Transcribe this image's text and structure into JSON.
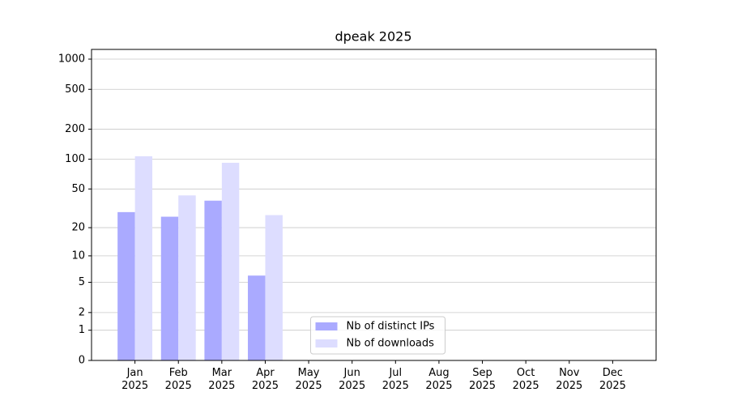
{
  "chart_data": {
    "type": "bar",
    "title": "dpeak 2025",
    "scale": "log1p",
    "categories": [
      "Jan\n2025",
      "Feb\n2025",
      "Mar\n2025",
      "Apr\n2025",
      "May\n2025",
      "Jun\n2025",
      "Jul\n2025",
      "Aug\n2025",
      "Sep\n2025",
      "Oct\n2025",
      "Nov\n2025",
      "Dec\n2025"
    ],
    "series": [
      {
        "name": "Nb of distinct IPs",
        "color": "#aaaaff",
        "values": [
          29,
          26,
          38,
          6,
          null,
          null,
          null,
          null,
          null,
          null,
          null,
          null
        ]
      },
      {
        "name": "Nb of downloads",
        "color": "#ddddff",
        "values": [
          107,
          43,
          92,
          27,
          null,
          null,
          null,
          null,
          null,
          null,
          null,
          null
        ]
      }
    ],
    "ylim": [
      0,
      1250
    ],
    "yticks": [
      0,
      1,
      2,
      5,
      10,
      20,
      50,
      100,
      200,
      500,
      1000
    ],
    "grid": true,
    "legend": "lower center"
  }
}
